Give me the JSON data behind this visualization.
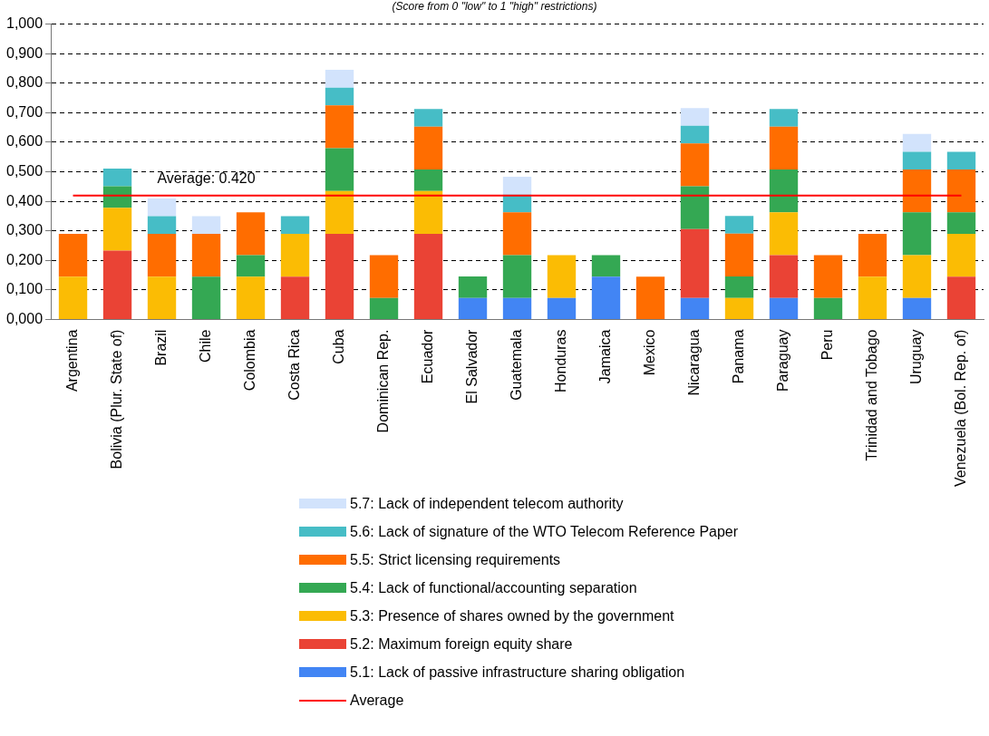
{
  "chart_data": {
    "type": "bar",
    "stacked": true,
    "subtitle": "(Score from 0 \"low\" to 1 \"high\" restrictions)",
    "categories": [
      "Argentina",
      "Bolivia (Plur. State of)",
      "Brazil",
      "Chile",
      "Colombia",
      "Costa Rica",
      "Cuba",
      "Dominican Rep.",
      "Ecuador",
      "El Salvador",
      "Guatemala",
      "Honduras",
      "Jamaica",
      "Mexico",
      "Nicaragua",
      "Panama",
      "Paraguay",
      "Peru",
      "Trinidad and Tobago",
      "Uruguay",
      "Venezuela (Bol. Rep. of)"
    ],
    "series": [
      {
        "name": "5.1: Lack of passive infrastructure sharing obligation",
        "color": "#4285f4",
        "values": [
          0,
          0,
          0,
          0,
          0,
          0,
          0,
          0,
          0,
          0.073,
          0.073,
          0.073,
          0.145,
          0,
          0.073,
          0,
          0.073,
          0,
          0,
          0.073,
          0
        ]
      },
      {
        "name": "5.2: Maximum foreign equity share",
        "color": "#ea4335",
        "values": [
          0,
          0.233,
          0,
          0,
          0,
          0.145,
          0.29,
          0,
          0.29,
          0,
          0,
          0,
          0,
          0,
          0.233,
          0,
          0.145,
          0,
          0,
          0,
          0.145
        ]
      },
      {
        "name": "5.3: Presence of shares owned by the government",
        "color": "#fbbc04",
        "values": [
          0.145,
          0.145,
          0.145,
          0,
          0.145,
          0.145,
          0.145,
          0,
          0.145,
          0,
          0,
          0.145,
          0,
          0,
          0,
          0.073,
          0.145,
          0,
          0.145,
          0.145,
          0.145
        ]
      },
      {
        "name": "5.4: Lack of functional/accounting separation",
        "color": "#34a853",
        "values": [
          0,
          0.073,
          0,
          0.145,
          0.073,
          0,
          0.145,
          0.073,
          0.073,
          0.073,
          0.145,
          0,
          0.073,
          0,
          0.145,
          0.073,
          0.145,
          0.073,
          0,
          0.145,
          0.073
        ]
      },
      {
        "name": "5.5: Strict licensing requirements",
        "color": "#ff6d00",
        "values": [
          0.145,
          0,
          0.145,
          0.145,
          0.145,
          0,
          0.145,
          0.145,
          0.145,
          0,
          0.145,
          0,
          0,
          0.145,
          0.145,
          0.145,
          0.145,
          0.145,
          0.145,
          0.145,
          0.145
        ]
      },
      {
        "name": "5.6: Lack of signature of the WTO Telecom Reference Paper",
        "color": "#46bdc6",
        "values": [
          0,
          0.06,
          0.06,
          0,
          0,
          0.06,
          0.06,
          0,
          0.06,
          0,
          0.06,
          0,
          0,
          0,
          0.06,
          0.06,
          0.06,
          0,
          0,
          0.06,
          0.06
        ]
      },
      {
        "name": "5.7: Lack of independent telecom authority",
        "color": "#d2e3fc",
        "values": [
          0,
          0,
          0.06,
          0.06,
          0,
          0,
          0.06,
          0,
          0,
          0,
          0.06,
          0,
          0,
          0,
          0.06,
          0,
          0,
          0,
          0,
          0.06,
          0
        ]
      },
      {
        "name": "Average",
        "type": "line",
        "color": "#ff0000",
        "values": [
          0.42,
          0.42,
          0.42,
          0.42,
          0.42,
          0.42,
          0.42,
          0.42,
          0.42,
          0.42,
          0.42,
          0.42,
          0.42,
          0.42,
          0.42,
          0.42,
          0.42,
          0.42,
          0.42,
          0.42,
          0.42
        ]
      }
    ],
    "annotations": [
      {
        "text": "Average: 0.420",
        "x": "Chile",
        "y": 0.42
      }
    ],
    "ylim": [
      0,
      1
    ],
    "yticks": [
      {
        "value": 0,
        "label": "0,000"
      },
      {
        "value": 0.1,
        "label": "0,100"
      },
      {
        "value": 0.2,
        "label": "0,200"
      },
      {
        "value": 0.3,
        "label": "0,300"
      },
      {
        "value": 0.4,
        "label": "0,400"
      },
      {
        "value": 0.5,
        "label": "0,500"
      },
      {
        "value": 0.6,
        "label": "0,600"
      },
      {
        "value": 0.7,
        "label": "0,700"
      },
      {
        "value": 0.8,
        "label": "0,800"
      },
      {
        "value": 0.9,
        "label": "0,900"
      },
      {
        "value": 1,
        "label": "1,000"
      }
    ],
    "grid": "y",
    "legend": "bottom",
    "marker": "none"
  }
}
